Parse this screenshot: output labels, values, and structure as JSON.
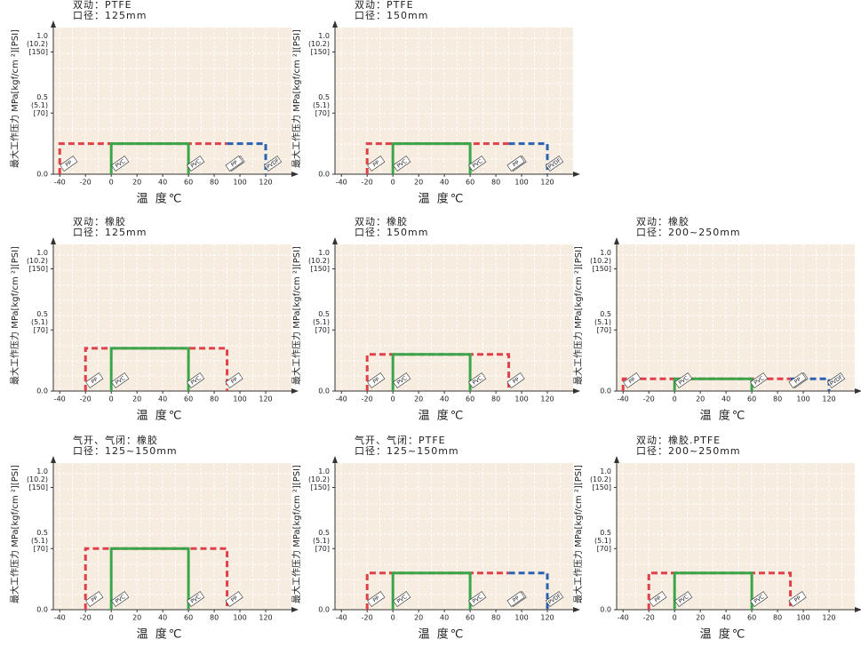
{
  "chart_data": [
    {
      "type": "line",
      "title": [
        "双动：PTFE",
        "口径：125mm"
      ],
      "x_label": "温 度℃",
      "y_label": "最大工作压力 MPa[kgf/cm ²][PSI]",
      "xlim": [
        -45,
        140
      ],
      "ylim": [
        0,
        1.2
      ],
      "xticks": [
        -40,
        -20,
        0,
        20,
        40,
        60,
        80,
        100,
        120
      ],
      "yticks": [
        {
          "value": 0,
          "label": [
            "0.0"
          ]
        },
        {
          "value": 0.5,
          "label": [
            "0.5",
            "(5.1)",
            "[70]"
          ]
        },
        {
          "value": 1,
          "label": [
            "1.0",
            "(10.2)",
            "[150]"
          ]
        }
      ],
      "series": [
        {
          "name": "PVDF",
          "color": "#2a62b0",
          "dashed": true,
          "x": [
            90,
            120,
            120
          ],
          "values": [
            0.25,
            0.25,
            0
          ]
        },
        {
          "name": "PP",
          "color": "#e0404a",
          "dashed": true,
          "x": [
            -40,
            -40,
            90
          ],
          "values": [
            0,
            0.25,
            0.25
          ]
        },
        {
          "name": "PVC",
          "color": "#3aa64a",
          "dashed": false,
          "x": [
            0,
            0,
            60,
            60
          ],
          "values": [
            0,
            0.25,
            0.25,
            0
          ]
        }
      ]
    },
    {
      "type": "line",
      "title": [
        "双动：PTFE",
        "口径：150mm"
      ],
      "x_label": "温 度℃",
      "y_label": "最大工作压力 MPa[kgf/cm ²][PSI]",
      "xlim": [
        -45,
        140
      ],
      "ylim": [
        0,
        1.2
      ],
      "xticks": [
        -40,
        -20,
        0,
        20,
        40,
        60,
        80,
        100,
        120
      ],
      "yticks": [
        {
          "value": 0,
          "label": [
            "0.0"
          ]
        },
        {
          "value": 0.5,
          "label": [
            "0.5",
            "(5.1)",
            "[70]"
          ]
        },
        {
          "value": 1,
          "label": [
            "1.0",
            "(10.2)",
            "[150]"
          ]
        }
      ],
      "series": [
        {
          "name": "PVDF",
          "color": "#2a62b0",
          "dashed": true,
          "x": [
            90,
            120,
            120
          ],
          "values": [
            0.25,
            0.25,
            0
          ]
        },
        {
          "name": "PP",
          "color": "#e0404a",
          "dashed": true,
          "x": [
            -20,
            -20,
            90
          ],
          "values": [
            0,
            0.25,
            0.25
          ]
        },
        {
          "name": "PVC",
          "color": "#3aa64a",
          "dashed": false,
          "x": [
            0,
            0,
            60,
            60
          ],
          "values": [
            0,
            0.25,
            0.25,
            0
          ]
        }
      ]
    },
    {
      "type": "line",
      "title": [
        "双动：橡胶",
        "口径：125mm"
      ],
      "x_label": "温 度℃",
      "y_label": "最大工作压力 MPa[kgf/cm ²][PSI]",
      "xlim": [
        -45,
        140
      ],
      "ylim": [
        0,
        1.2
      ],
      "xticks": [
        -40,
        -20,
        0,
        20,
        40,
        60,
        80,
        100,
        120
      ],
      "yticks": [
        {
          "value": 0,
          "label": [
            "0.0"
          ]
        },
        {
          "value": 0.5,
          "label": [
            "0.5",
            "(5.1)",
            "[70]"
          ]
        },
        {
          "value": 1,
          "label": [
            "1.0",
            "(10.2)",
            "[150]"
          ]
        }
      ],
      "series": [
        {
          "name": "PP",
          "color": "#e0404a",
          "dashed": true,
          "x": [
            -20,
            -20,
            90,
            90
          ],
          "values": [
            0,
            0.35,
            0.35,
            0
          ]
        },
        {
          "name": "PVC",
          "color": "#3aa64a",
          "dashed": false,
          "x": [
            0,
            0,
            60,
            60
          ],
          "values": [
            0,
            0.35,
            0.35,
            0
          ]
        }
      ]
    },
    {
      "type": "line",
      "title": [
        "双动：橡胶",
        "口径：150mm"
      ],
      "x_label": "温 度℃",
      "y_label": "最大工作压力 MPa[kgf/cm ²][PSI]",
      "xlim": [
        -45,
        140
      ],
      "ylim": [
        0,
        1.2
      ],
      "xticks": [
        -40,
        -20,
        0,
        20,
        40,
        60,
        80,
        100,
        120
      ],
      "yticks": [
        {
          "value": 0,
          "label": [
            "0.0"
          ]
        },
        {
          "value": 0.5,
          "label": [
            "0.5",
            "(5.1)",
            "[70]"
          ]
        },
        {
          "value": 1,
          "label": [
            "1.0",
            "(10.2)",
            "[150]"
          ]
        }
      ],
      "series": [
        {
          "name": "PP",
          "color": "#e0404a",
          "dashed": true,
          "x": [
            -20,
            -20,
            90,
            90
          ],
          "values": [
            0,
            0.3,
            0.3,
            0
          ]
        },
        {
          "name": "PVC",
          "color": "#3aa64a",
          "dashed": false,
          "x": [
            0,
            0,
            60,
            60
          ],
          "values": [
            0,
            0.3,
            0.3,
            0
          ]
        }
      ]
    },
    {
      "type": "line",
      "title": [
        "双动：橡胶",
        "口径：200~250mm"
      ],
      "x_label": "温 度℃",
      "y_label": "最大工作压力 MPa[kgf/cm ²][PSI]",
      "xlim": [
        -45,
        140
      ],
      "ylim": [
        0,
        1.2
      ],
      "xticks": [
        -40,
        -20,
        0,
        20,
        40,
        60,
        80,
        100,
        120
      ],
      "yticks": [
        {
          "value": 0,
          "label": [
            "0.0"
          ]
        },
        {
          "value": 0.5,
          "label": [
            "0.5",
            "(5.1)",
            "[70]"
          ]
        },
        {
          "value": 1,
          "label": [
            "1.0",
            "(10.2)",
            "[150]"
          ]
        }
      ],
      "series": [
        {
          "name": "PVDF",
          "color": "#2a62b0",
          "dashed": true,
          "x": [
            90,
            120,
            120
          ],
          "values": [
            0.1,
            0.1,
            0
          ]
        },
        {
          "name": "PP",
          "color": "#e0404a",
          "dashed": true,
          "x": [
            -40,
            -40,
            90
          ],
          "values": [
            0,
            0.1,
            0.1
          ]
        },
        {
          "name": "PVC",
          "color": "#3aa64a",
          "dashed": false,
          "x": [
            0,
            0,
            60,
            60
          ],
          "values": [
            0,
            0.1,
            0.1,
            0
          ]
        }
      ]
    },
    {
      "type": "line",
      "title": [
        "气开、气闭：橡胶",
        "口径：125~150mm"
      ],
      "x_label": "温 度℃",
      "y_label": "最大工作压力 MPa[kgf/cm ²][PSI]",
      "xlim": [
        -45,
        140
      ],
      "ylim": [
        0,
        1.2
      ],
      "xticks": [
        -40,
        -20,
        0,
        20,
        40,
        60,
        80,
        100,
        120
      ],
      "yticks": [
        {
          "value": 0,
          "label": [
            "0.0"
          ]
        },
        {
          "value": 0.5,
          "label": [
            "0.5",
            "(5.1)",
            "[70]"
          ]
        },
        {
          "value": 1,
          "label": [
            "1.0",
            "(10.2)",
            "[150]"
          ]
        }
      ],
      "series": [
        {
          "name": "PP",
          "color": "#e0404a",
          "dashed": true,
          "x": [
            -20,
            -20,
            90,
            90
          ],
          "values": [
            0,
            0.5,
            0.5,
            0
          ]
        },
        {
          "name": "PVC",
          "color": "#3aa64a",
          "dashed": false,
          "x": [
            0,
            0,
            60,
            60
          ],
          "values": [
            0,
            0.5,
            0.5,
            0
          ]
        }
      ]
    },
    {
      "type": "line",
      "title": [
        "气开、气闭：PTFE",
        "口径：125~150mm"
      ],
      "x_label": "温 度℃",
      "y_label": "最大工作压力 MPa[kgf/cm ²][PSI]",
      "xlim": [
        -45,
        140
      ],
      "ylim": [
        0,
        1.2
      ],
      "xticks": [
        -40,
        -20,
        0,
        20,
        40,
        60,
        80,
        100,
        120
      ],
      "yticks": [
        {
          "value": 0,
          "label": [
            "0.0"
          ]
        },
        {
          "value": 0.5,
          "label": [
            "0.5",
            "(5.1)",
            "[70]"
          ]
        },
        {
          "value": 1,
          "label": [
            "1.0",
            "(10.2)",
            "[150]"
          ]
        }
      ],
      "series": [
        {
          "name": "PVDF",
          "color": "#2a62b0",
          "dashed": true,
          "x": [
            90,
            120,
            120
          ],
          "values": [
            0.3,
            0.3,
            0
          ]
        },
        {
          "name": "PP",
          "color": "#e0404a",
          "dashed": true,
          "x": [
            -20,
            -20,
            90
          ],
          "values": [
            0,
            0.3,
            0.3
          ]
        },
        {
          "name": "PVC",
          "color": "#3aa64a",
          "dashed": false,
          "x": [
            0,
            0,
            60,
            60
          ],
          "values": [
            0,
            0.3,
            0.3,
            0
          ]
        }
      ]
    },
    {
      "type": "line",
      "title": [
        "双动：橡胶.PTFE",
        "口径：200~250mm"
      ],
      "x_label": "温 度℃",
      "y_label": "最大工作压力 MPa[kgf/cm ²][PSI]",
      "xlim": [
        -45,
        140
      ],
      "ylim": [
        0,
        1.2
      ],
      "xticks": [
        -40,
        -20,
        0,
        20,
        40,
        60,
        80,
        100,
        120
      ],
      "yticks": [
        {
          "value": 0,
          "label": [
            "0.0"
          ]
        },
        {
          "value": 0.5,
          "label": [
            "0.5",
            "(5.1)",
            "[70]"
          ]
        },
        {
          "value": 1,
          "label": [
            "1.0",
            "(10.2)",
            "[150]"
          ]
        }
      ],
      "series": [
        {
          "name": "PP",
          "color": "#e0404a",
          "dashed": true,
          "x": [
            -20,
            -20,
            90,
            90
          ],
          "values": [
            0,
            0.3,
            0.3,
            0
          ]
        },
        {
          "name": "PVC",
          "color": "#3aa64a",
          "dashed": false,
          "x": [
            0,
            0,
            60,
            60
          ],
          "values": [
            0,
            0.3,
            0.3,
            0
          ]
        }
      ]
    }
  ]
}
